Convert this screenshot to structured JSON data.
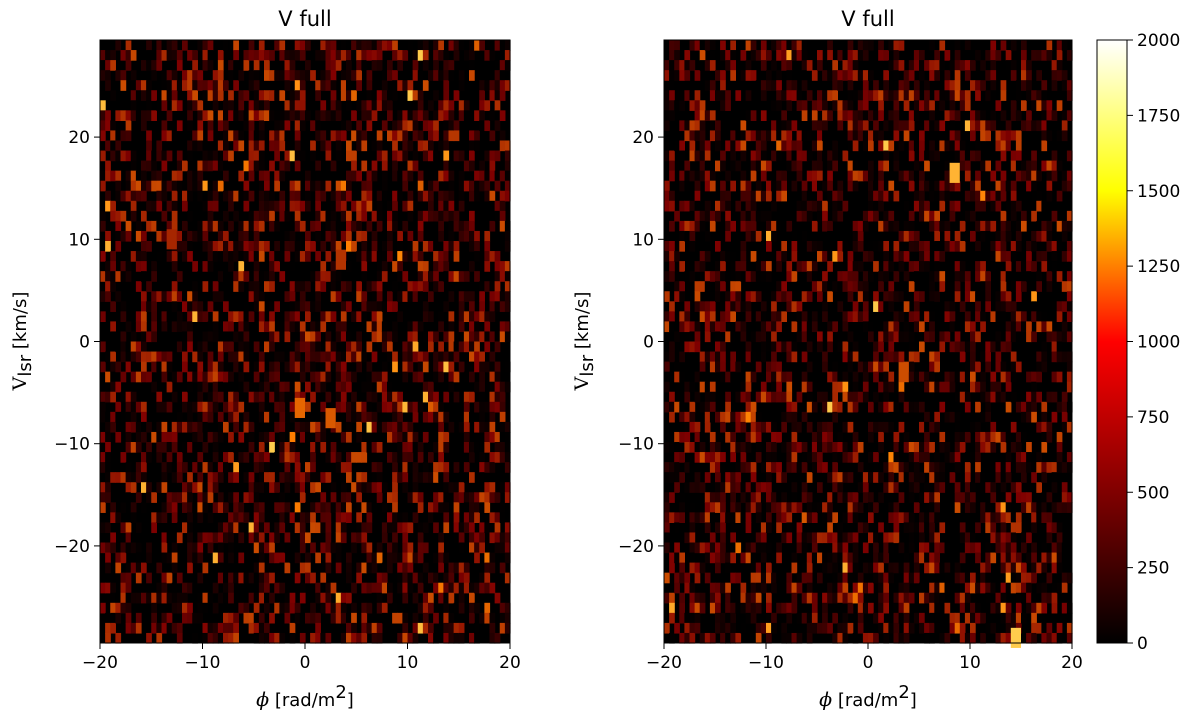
{
  "chart_data": [
    {
      "type": "heatmap",
      "title": "V full",
      "xlim": [
        -20,
        20
      ],
      "ylim": [
        -29.5,
        29.5
      ],
      "x_ticks": [
        -20,
        -10,
        0,
        10,
        20
      ],
      "y_ticks": [
        -20,
        -10,
        0,
        10,
        20
      ],
      "xlabel": {
        "symbol": "ϕ",
        "text": " [rad/m",
        "sup": "2",
        "close": "]"
      },
      "ylabel": {
        "main": "V",
        "sub": "lsr",
        "rest": " [km/s]"
      },
      "colormap": "afmhot",
      "vmin": 0,
      "vmax": 2000,
      "features": [
        {
          "label": "",
          "phi": -0.5,
          "v": -6.5,
          "intensity": 900
        },
        {
          "label": "",
          "phi": 2.5,
          "v": -7.5,
          "intensity": 850
        },
        {
          "label": "",
          "phi": -13,
          "v": 10,
          "intensity": 650
        },
        {
          "label": "",
          "phi": 3.5,
          "v": 8,
          "intensity": 700
        }
      ]
    },
    {
      "type": "heatmap",
      "title": "V full",
      "xlim": [
        -20,
        20
      ],
      "ylim": [
        -29.5,
        29.5
      ],
      "x_ticks": [
        -20,
        -10,
        0,
        10,
        20
      ],
      "y_ticks": [
        -20,
        -10,
        0,
        10,
        20
      ],
      "xlabel": {
        "symbol": "ϕ",
        "text": " [rad/m",
        "sup": "2",
        "close": "]"
      },
      "ylabel": {
        "main": "V",
        "sub": "lsr",
        "rest": " [km/s]"
      },
      "colormap": "afmhot",
      "vmin": 0,
      "vmax": 2000,
      "features": [
        {
          "label": "",
          "phi": 8.5,
          "v": 16.5,
          "intensity": 1200
        },
        {
          "label": "",
          "phi": 14.5,
          "v": -29,
          "intensity": 1300
        },
        {
          "label": "",
          "phi": 3.5,
          "v": -3,
          "intensity": 800
        }
      ]
    }
  ],
  "colorbar": {
    "ticks": [
      0,
      250,
      500,
      750,
      1000,
      1250,
      1500,
      1750,
      2000
    ],
    "vmin": 0,
    "vmax": 2000
  }
}
